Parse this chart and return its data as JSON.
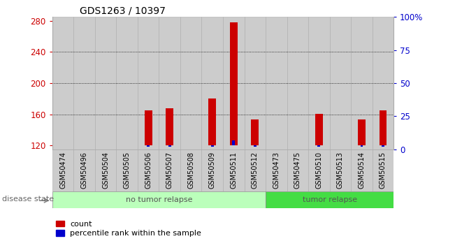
{
  "title": "GDS1263 / 10397",
  "samples": [
    "GSM50474",
    "GSM50496",
    "GSM50504",
    "GSM50505",
    "GSM50506",
    "GSM50507",
    "GSM50508",
    "GSM50509",
    "GSM50511",
    "GSM50512",
    "GSM50473",
    "GSM50475",
    "GSM50510",
    "GSM50513",
    "GSM50514",
    "GSM50515"
  ],
  "count_values": [
    120,
    120,
    120,
    120,
    165,
    168,
    120,
    180,
    278,
    153,
    120,
    120,
    161,
    120,
    153,
    165
  ],
  "percentile_values": [
    0,
    0,
    0,
    0,
    2,
    2,
    0,
    2,
    7,
    2,
    0,
    0,
    2,
    0,
    2,
    2
  ],
  "ylim_left": [
    115,
    285
  ],
  "ylim_right": [
    0,
    100
  ],
  "yticks_left": [
    120,
    160,
    200,
    240,
    280
  ],
  "yticks_right": [
    0,
    25,
    50,
    75,
    100
  ],
  "yticklabels_right": [
    "0",
    "25",
    "50",
    "75",
    "100%"
  ],
  "grid_values": [
    160,
    200,
    240
  ],
  "bar_bottom": 120,
  "count_color": "#cc0000",
  "percentile_color": "#0000cc",
  "no_tumor_n": 10,
  "tumor_n": 6,
  "no_tumor_color": "#bbffbb",
  "tumor_color": "#44dd44",
  "disease_label": "disease state",
  "no_tumor_label": "no tumor relapse",
  "tumor_label": "tumor relapse",
  "legend_count": "count",
  "legend_percentile": "percentile rank within the sample",
  "col_bg_color": "#cccccc",
  "col_border_color": "#aaaaaa",
  "bar_width": 0.35,
  "percentile_bar_width": 0.12
}
